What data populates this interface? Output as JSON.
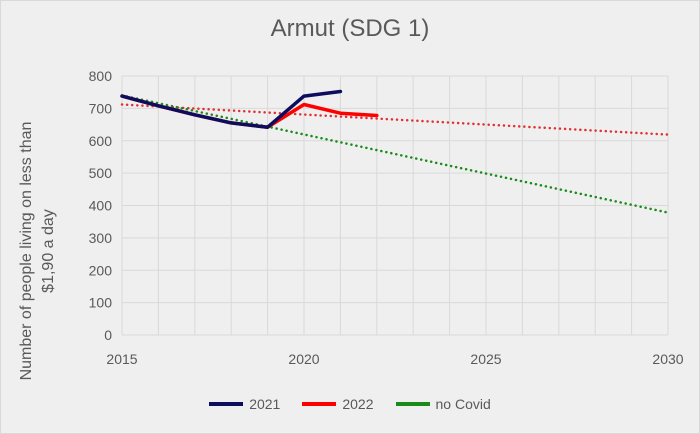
{
  "chart_data": {
    "type": "line",
    "title": "Armut (SDG 1)",
    "xlabel": "",
    "ylabel": "Number of people living on less than $1,90 a day",
    "xlim": [
      2015,
      2030
    ],
    "ylim": [
      0,
      800
    ],
    "x_ticks": [
      2015,
      2020,
      2025,
      2030
    ],
    "y_ticks": [
      0,
      100,
      200,
      300,
      400,
      500,
      600,
      700,
      800
    ],
    "grid": "vertical-yearly-and-horizontal",
    "legend_position": "bottom",
    "series": [
      {
        "name": "2021",
        "color": "#0d0d5e",
        "style": "solid",
        "x": [
          2015,
          2016,
          2017,
          2018,
          2019,
          2020,
          2021
        ],
        "y": [
          738,
          708,
          680,
          655,
          642,
          738,
          752
        ]
      },
      {
        "name": "2022",
        "color": "#ff0000",
        "style": "solid",
        "x": [
          2015,
          2016,
          2017,
          2018,
          2019,
          2020,
          2021,
          2022
        ],
        "y": [
          738,
          708,
          680,
          655,
          642,
          712,
          685,
          678
        ]
      },
      {
        "name": "no Covid",
        "color": "#1a8a1a",
        "style": "dotted",
        "x": [
          2015,
          2030
        ],
        "y": [
          740,
          378
        ]
      }
    ],
    "trendlines": [
      {
        "color": "#e03030",
        "style": "dotted",
        "x": [
          2015,
          2030
        ],
        "y": [
          712,
          619
        ]
      }
    ]
  }
}
